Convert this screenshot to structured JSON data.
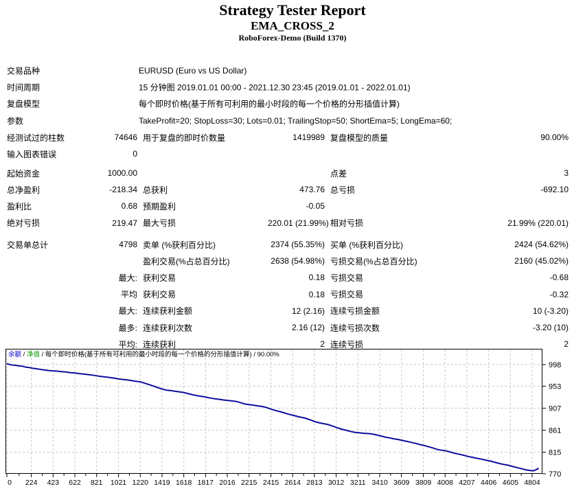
{
  "report": {
    "title": "Strategy Tester Report",
    "ea_name": "EMA_CROSS_2",
    "server": "RoboForex-Demo (Build 1370)"
  },
  "info_rows": [
    {
      "label": "交易品种",
      "value": "EURUSD (Euro vs US Dollar)"
    },
    {
      "label": "时间周期",
      "value": "15 分钟图 2019.01.01 00:00 - 2021.12.30 23:45 (2019.01.01 - 2022.01.01)"
    },
    {
      "label": "复盘模型",
      "value": "每个即时价格(基于所有可利用的最小时段的每一个价格的分形插值计算)"
    },
    {
      "label": "参数",
      "value": "TakeProfit=20; StopLoss=30; Lots=0.01; TrailingStop=50; ShortEma=5; LongEma=60;"
    }
  ],
  "stat_sections": [
    {
      "rows": [
        [
          "经测试过的柱数",
          "74646",
          "用于复盘的即时价数量",
          "1419989",
          "复盘模型的质量",
          "90.00%"
        ],
        [
          "输入图表错误",
          "0",
          "",
          "",
          "",
          ""
        ]
      ]
    },
    {
      "rows": [
        [
          "起始资金",
          "1000.00",
          "",
          "",
          "点差",
          "3"
        ],
        [
          "总净盈利",
          "-218.34",
          "总获利",
          "473.76",
          "总亏损",
          "-692.10"
        ],
        [
          "盈利比",
          "0.68",
          "预期盈利",
          "-0.05",
          "",
          ""
        ],
        [
          "绝对亏损",
          "219.47",
          "最大亏损",
          "220.01 (21.99%)",
          "相对亏损",
          "21.99% (220.01)"
        ]
      ]
    },
    {
      "rows": [
        [
          "交易单总计",
          "4798",
          "卖单 (%获利百分比)",
          "2374 (55.35%)",
          "买单 (%获利百分比)",
          "2424 (54.62%)"
        ],
        [
          "",
          "",
          "盈利交易(%占总百分比)",
          "2638 (54.98%)",
          "亏损交易(%占总百分比)",
          "2160 (45.02%)"
        ],
        [
          "",
          "最大:",
          "获利交易",
          "0.18",
          "亏损交易",
          "-0.68"
        ],
        [
          "",
          "平均",
          "获利交易",
          "0.18",
          "亏损交易",
          "-0.32"
        ],
        [
          "",
          "最大:",
          "连续获利金额",
          "12 (2.16)",
          "连续亏损金额",
          "10 (-3.20)"
        ],
        [
          "",
          "最多:",
          "连续获利次数",
          "2.16 (12)",
          "连续亏损次数",
          "-3.20 (10)"
        ],
        [
          "",
          "平均:",
          "连续获利",
          "2",
          "连续亏损",
          "2"
        ]
      ]
    }
  ],
  "chart_data": {
    "type": "line",
    "legend": {
      "balance_label": "余额",
      "equity_label": "净值",
      "model_label": "每个即时价格(基于所有可利用的最小时段的每一个价格的分形插值计算)",
      "quality_label": "90.00%",
      "separator": " / ",
      "balance_color": "#0000c8",
      "equity_color": "#009900"
    },
    "x_ticks": [
      0,
      224,
      423,
      622,
      821,
      1021,
      1220,
      1419,
      1618,
      1817,
      2016,
      2215,
      2415,
      2614,
      2813,
      3012,
      3211,
      3410,
      3609,
      3809,
      4008,
      4207,
      4406,
      4605,
      4804
    ],
    "y_ticks": [
      998,
      953,
      907,
      861,
      815,
      770
    ],
    "x_range": [
      0,
      4900
    ],
    "y_range": [
      770,
      1031
    ],
    "grid": "dashed",
    "colors": {
      "line": "#0d0d9e",
      "grid": "#c8c8c8",
      "border": "#000000",
      "tick_text": "#000000"
    },
    "series": [
      {
        "name": "余额",
        "points": [
          [
            0,
            1000
          ],
          [
            25,
            998.2
          ],
          [
            55,
            997
          ],
          [
            85,
            996.4
          ],
          [
            115,
            995.2
          ],
          [
            145,
            994.6
          ],
          [
            175,
            992.6
          ],
          [
            205,
            992
          ],
          [
            235,
            990.2
          ],
          [
            265,
            989.6
          ],
          [
            300,
            988.2
          ],
          [
            340,
            987
          ],
          [
            380,
            985.6
          ],
          [
            420,
            985
          ],
          [
            460,
            984.4
          ],
          [
            500,
            983.2
          ],
          [
            540,
            982.6
          ],
          [
            580,
            981.2
          ],
          [
            620,
            980.6
          ],
          [
            660,
            979.2
          ],
          [
            700,
            978.2
          ],
          [
            740,
            977.2
          ],
          [
            780,
            976.2
          ],
          [
            820,
            974.6
          ],
          [
            860,
            973.2
          ],
          [
            900,
            972.2
          ],
          [
            940,
            971
          ],
          [
            980,
            969.6
          ],
          [
            1020,
            968.2
          ],
          [
            1060,
            967
          ],
          [
            1100,
            966
          ],
          [
            1140,
            964.6
          ],
          [
            1180,
            963.2
          ],
          [
            1220,
            962
          ],
          [
            1260,
            959.2
          ],
          [
            1300,
            956.2
          ],
          [
            1340,
            953.2
          ],
          [
            1380,
            950
          ],
          [
            1420,
            947
          ],
          [
            1460,
            944.6
          ],
          [
            1500,
            943.6
          ],
          [
            1540,
            942.2
          ],
          [
            1580,
            941
          ],
          [
            1620,
            939.6
          ],
          [
            1660,
            937.2
          ],
          [
            1700,
            935
          ],
          [
            1740,
            933
          ],
          [
            1780,
            931.6
          ],
          [
            1820,
            930
          ],
          [
            1860,
            928.2
          ],
          [
            1900,
            926.6
          ],
          [
            1940,
            925.6
          ],
          [
            1980,
            924.2
          ],
          [
            2020,
            923.2
          ],
          [
            2060,
            922.2
          ],
          [
            2100,
            921
          ],
          [
            2140,
            918.2
          ],
          [
            2180,
            915.6
          ],
          [
            2220,
            914.2
          ],
          [
            2260,
            913
          ],
          [
            2300,
            911.6
          ],
          [
            2340,
            910.4
          ],
          [
            2380,
            908
          ],
          [
            2420,
            904.6
          ],
          [
            2460,
            902
          ],
          [
            2500,
            899.6
          ],
          [
            2540,
            897
          ],
          [
            2580,
            894.2
          ],
          [
            2620,
            892
          ],
          [
            2660,
            889.6
          ],
          [
            2700,
            887.6
          ],
          [
            2740,
            885.4
          ],
          [
            2780,
            882.2
          ],
          [
            2820,
            878.6
          ],
          [
            2860,
            876.2
          ],
          [
            2900,
            874.6
          ],
          [
            2940,
            872.6
          ],
          [
            2980,
            869.6
          ],
          [
            3020,
            866.2
          ],
          [
            3060,
            863.2
          ],
          [
            3100,
            861
          ],
          [
            3140,
            858.6
          ],
          [
            3180,
            856.6
          ],
          [
            3220,
            855.6
          ],
          [
            3260,
            854.6
          ],
          [
            3300,
            854
          ],
          [
            3340,
            853.2
          ],
          [
            3380,
            851.2
          ],
          [
            3420,
            849
          ],
          [
            3460,
            846.6
          ],
          [
            3500,
            845
          ],
          [
            3540,
            843
          ],
          [
            3580,
            841.6
          ],
          [
            3620,
            839.6
          ],
          [
            3660,
            837.6
          ],
          [
            3700,
            835.6
          ],
          [
            3740,
            833.4
          ],
          [
            3780,
            831
          ],
          [
            3820,
            829
          ],
          [
            3860,
            826.2
          ],
          [
            3900,
            823.6
          ],
          [
            3940,
            820.6
          ],
          [
            3980,
            819
          ],
          [
            4020,
            817.6
          ],
          [
            4060,
            815.2
          ],
          [
            4100,
            812.6
          ],
          [
            4140,
            810.6
          ],
          [
            4180,
            808.6
          ],
          [
            4220,
            806.2
          ],
          [
            4260,
            804.2
          ],
          [
            4300,
            802.2
          ],
          [
            4340,
            800.6
          ],
          [
            4380,
            798.6
          ],
          [
            4420,
            796.6
          ],
          [
            4460,
            794.2
          ],
          [
            4500,
            791.6
          ],
          [
            4540,
            789.6
          ],
          [
            4580,
            788
          ],
          [
            4620,
            785.6
          ],
          [
            4660,
            783.2
          ],
          [
            4700,
            781
          ],
          [
            4740,
            778.6
          ],
          [
            4780,
            777
          ],
          [
            4815,
            776.2
          ],
          [
            4845,
            779
          ],
          [
            4864,
            781.66
          ]
        ]
      }
    ]
  }
}
